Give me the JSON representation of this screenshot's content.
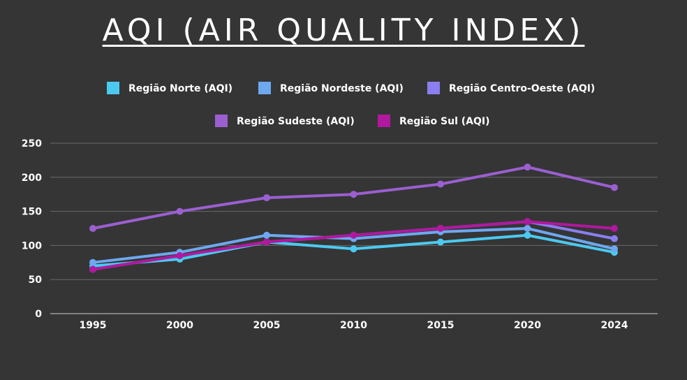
{
  "chart_data": {
    "type": "line",
    "title": "AQI (AIR QUALITY INDEX)",
    "categories": [
      "1995",
      "2000",
      "2005",
      "2010",
      "2015",
      "2020",
      "2024"
    ],
    "ylim": [
      0,
      250
    ],
    "yticks": [
      0,
      50,
      100,
      150,
      200,
      250
    ],
    "grid": true,
    "legend_position": "top",
    "series": [
      {
        "name": "Região Norte (AQI)",
        "color": "#4cc9f0",
        "values": [
          70,
          80,
          105,
          95,
          105,
          115,
          90
        ]
      },
      {
        "name": "Região Nordeste (AQI)",
        "color": "#6ea8f0",
        "values": [
          75,
          90,
          115,
          110,
          120,
          125,
          95
        ]
      },
      {
        "name": "Região Centro-Oeste (AQI)",
        "color": "#8a7ff0",
        "values": [
          65,
          85,
          105,
          115,
          125,
          135,
          110
        ]
      },
      {
        "name": "Região Sudeste (AQI)",
        "color": "#9b5fd0",
        "values": [
          125,
          150,
          170,
          175,
          190,
          215,
          185
        ]
      },
      {
        "name": "Região Sul (AQI)",
        "color": "#b0189e",
        "values": [
          65,
          85,
          105,
          115,
          125,
          135,
          125
        ]
      }
    ]
  }
}
